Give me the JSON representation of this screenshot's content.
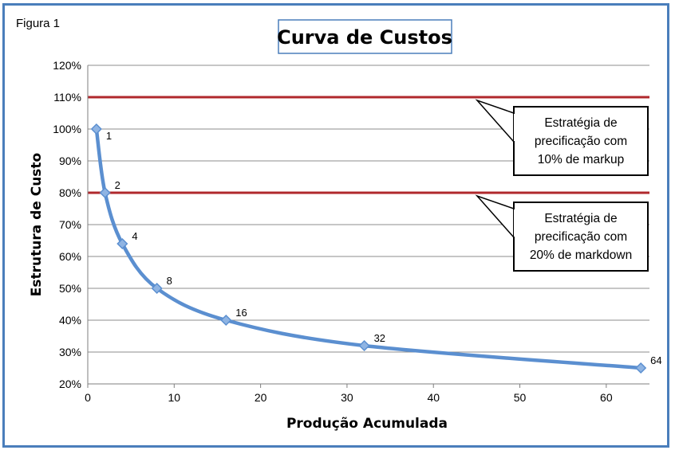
{
  "figure_label": "Figura 1",
  "colors": {
    "frame": "#4a7ebb",
    "curve": "#5b8fd0",
    "marker": "#8fb4e3",
    "reference_line": "#b0282c",
    "grid": "#8c8c8c"
  },
  "chart_data": {
    "type": "line",
    "title": "Curva de Custos",
    "xlabel": "Produção Acumulada",
    "ylabel": "Estrutura de Custo",
    "xlim": [
      0,
      65
    ],
    "ylim": [
      0.2,
      1.2
    ],
    "x_ticks": [
      0,
      10,
      20,
      30,
      40,
      50,
      60
    ],
    "y_ticks": [
      0.2,
      0.3,
      0.4,
      0.5,
      0.6,
      0.7,
      0.8,
      0.9,
      1.0,
      1.1,
      1.2
    ],
    "y_tick_labels": [
      "20%",
      "30%",
      "40%",
      "50%",
      "60%",
      "70%",
      "80%",
      "90%",
      "100%",
      "110%",
      "120%"
    ],
    "grid": true,
    "series": [
      {
        "x": [
          1,
          2,
          4,
          8,
          16,
          32,
          64
        ],
        "y": [
          1.0,
          0.8,
          0.64,
          0.5,
          0.4,
          0.32,
          0.25
        ],
        "labels": [
          "1",
          "2",
          "4",
          "8",
          "16",
          "32",
          "64"
        ]
      }
    ],
    "reference_lines": [
      {
        "y": 1.1,
        "callout": [
          "Estratégia de",
          "precificação com",
          "10% de markup"
        ]
      },
      {
        "y": 0.8,
        "callout": [
          "Estratégia de",
          "precificação com",
          "20% de markdown"
        ]
      }
    ]
  }
}
